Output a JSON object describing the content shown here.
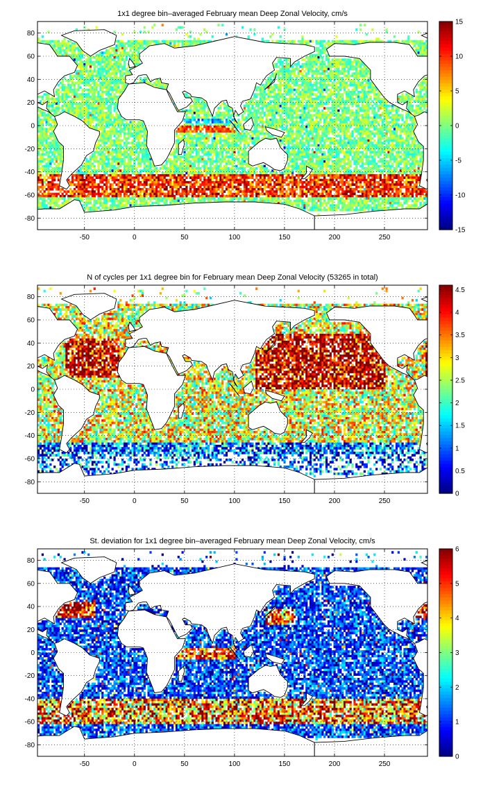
{
  "chart_data": [
    {
      "type": "heatmap",
      "title": "1x1 degree bin–averaged February mean Deep Zonal Velocity, cm/s",
      "x_ticks": [
        "-50",
        "0",
        "50",
        "100",
        "150",
        "200",
        "250"
      ],
      "y_ticks": [
        "80",
        "60",
        "40",
        "20",
        "0",
        "-20",
        "-40",
        "-60",
        "-80"
      ],
      "xlim": [
        -97,
        293
      ],
      "ylim": [
        -90,
        90
      ],
      "colorbar": {
        "range": [
          -15,
          15
        ],
        "ticks": [
          "15",
          "10",
          "5",
          "0",
          "-5",
          "-10",
          "-15"
        ],
        "colormap": "jet"
      },
      "grid": true,
      "description": "Values mostly near 0 (cyan/green) over open ocean; strong positive zonal flow (red, up to ~10-15 cm/s) along the Antarctic Circumpolar Current around 45-60 S and in equatorial bands near 0 and -5 in the Indian and Atlantic Oceans.",
      "samples": [
        {
          "lon": -40,
          "lat": 30,
          "value": 0
        },
        {
          "lon": 180,
          "lat": 20,
          "value": 1
        },
        {
          "lon": 60,
          "lat": -50,
          "value": 10
        },
        {
          "lon": 150,
          "lat": -55,
          "value": 12
        },
        {
          "lon": 240,
          "lat": -55,
          "value": 9
        },
        {
          "lon": 70,
          "lat": 0,
          "value": 8
        },
        {
          "lon": 200,
          "lat": -20,
          "value": -1
        }
      ]
    },
    {
      "type": "heatmap",
      "title": "N of cycles per 1x1 degree bin for February mean Deep Zonal Velocity (53265 in total)",
      "x_ticks": [
        "-50",
        "0",
        "50",
        "100",
        "150",
        "200",
        "250"
      ],
      "y_ticks": [
        "80",
        "60",
        "40",
        "20",
        "0",
        "-20",
        "-40",
        "-60",
        "-80"
      ],
      "xlim": [
        -97,
        293
      ],
      "ylim": [
        -90,
        90
      ],
      "colorbar": {
        "range": [
          0,
          4.6
        ],
        "ticks": [
          "4.5",
          "4",
          "3.5",
          "3",
          "2.5",
          "2",
          "1.5",
          "1",
          "0.5",
          "0"
        ],
        "colormap": "jet"
      },
      "grid": true,
      "description": "Counts are highest (dark red) in the North Atlantic subtropics, western and central North Pacific and the Indian Ocean; lower (blue) in the Southern Ocean.",
      "samples": [
        {
          "lon": 160,
          "lat": 35,
          "value": 4.2
        },
        {
          "lon": -40,
          "lat": 25,
          "value": 3.8
        },
        {
          "lon": 70,
          "lat": -10,
          "value": 3.5
        },
        {
          "lon": 200,
          "lat": -40,
          "value": 2.5
        },
        {
          "lon": 100,
          "lat": -55,
          "value": 1.2
        }
      ]
    },
    {
      "type": "heatmap",
      "title": "St. deviation for 1x1 degree bin–averaged February mean Deep Zonal Velocity, cm/s",
      "x_ticks": [
        "-50",
        "0",
        "50",
        "100",
        "150",
        "200",
        "250"
      ],
      "y_ticks": [
        "80",
        "60",
        "40",
        "20",
        "0",
        "-20",
        "-40",
        "-60",
        "-80"
      ],
      "xlim": [
        -97,
        293
      ],
      "ylim": [
        -90,
        90
      ],
      "colorbar": {
        "range": [
          0,
          6
        ],
        "ticks": [
          "6",
          "5",
          "4",
          "3",
          "2",
          "1",
          "0"
        ],
        "colormap": "jet"
      },
      "grid": true,
      "description": "Standard deviation mostly low (dark blue, 0-1.5) over the Pacific; high (red, 4-6) along the Antarctic Circumpolar Current, Gulf Stream region and equatorial Indian Ocean.",
      "samples": [
        {
          "lon": 200,
          "lat": 10,
          "value": 1
        },
        {
          "lon": 60,
          "lat": -45,
          "value": 5.5
        },
        {
          "lon": -60,
          "lat": 38,
          "value": 5
        },
        {
          "lon": 150,
          "lat": -50,
          "value": 4.5
        },
        {
          "lon": 220,
          "lat": -30,
          "value": 1.2
        }
      ]
    }
  ]
}
